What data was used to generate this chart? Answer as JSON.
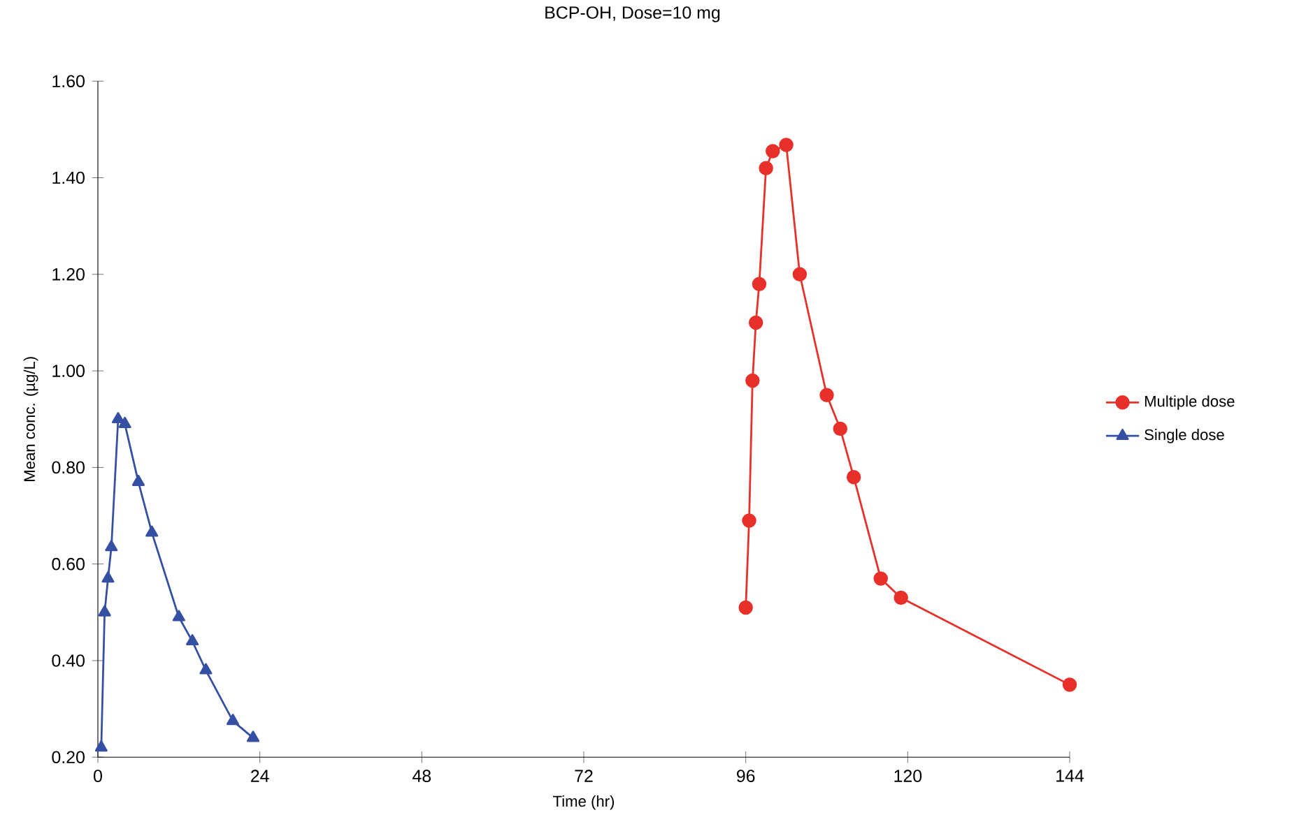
{
  "chart_data": {
    "type": "line",
    "title": "BCP-OH, Dose=10 mg",
    "xlabel": "Time (hr)",
    "ylabel": "Mean conc. (µg/L)",
    "xlim": [
      0,
      144
    ],
    "xticks": [
      0,
      24,
      48,
      72,
      96,
      120,
      144
    ],
    "ylim": [
      0.2,
      1.6
    ],
    "yticks": [
      {
        "value": 0.2,
        "label": "0.20"
      },
      {
        "value": 0.4,
        "label": "0.40"
      },
      {
        "value": 0.6,
        "label": "0.60"
      },
      {
        "value": 0.8,
        "label": "0.80"
      },
      {
        "value": 1.0,
        "label": "1.00"
      },
      {
        "value": 1.2,
        "label": "1.20"
      },
      {
        "value": 1.4,
        "label": "1.40"
      },
      {
        "value": 1.6,
        "label": "1.60"
      }
    ],
    "legend": "right",
    "grid": false,
    "series": [
      {
        "name": "Multiple dose",
        "color": "#e8302a",
        "marker": "circle",
        "x": [
          96,
          96.5,
          97,
          97.5,
          98,
          99,
          100,
          102,
          104,
          108,
          110,
          112,
          116,
          119,
          144
        ],
        "values": [
          0.51,
          0.69,
          0.98,
          1.1,
          1.18,
          1.42,
          1.455,
          1.468,
          1.2,
          0.95,
          0.88,
          0.78,
          0.57,
          0.53,
          0.35
        ]
      },
      {
        "name": "Single dose",
        "color": "#3550a3",
        "marker": "triangle",
        "x": [
          0.5,
          1,
          1.5,
          2,
          3,
          4,
          6,
          8,
          12,
          14,
          16,
          20,
          23
        ],
        "values": [
          0.22,
          0.5,
          0.57,
          0.635,
          0.9,
          0.89,
          0.77,
          0.665,
          0.49,
          0.44,
          0.38,
          0.275,
          0.24
        ]
      }
    ]
  }
}
